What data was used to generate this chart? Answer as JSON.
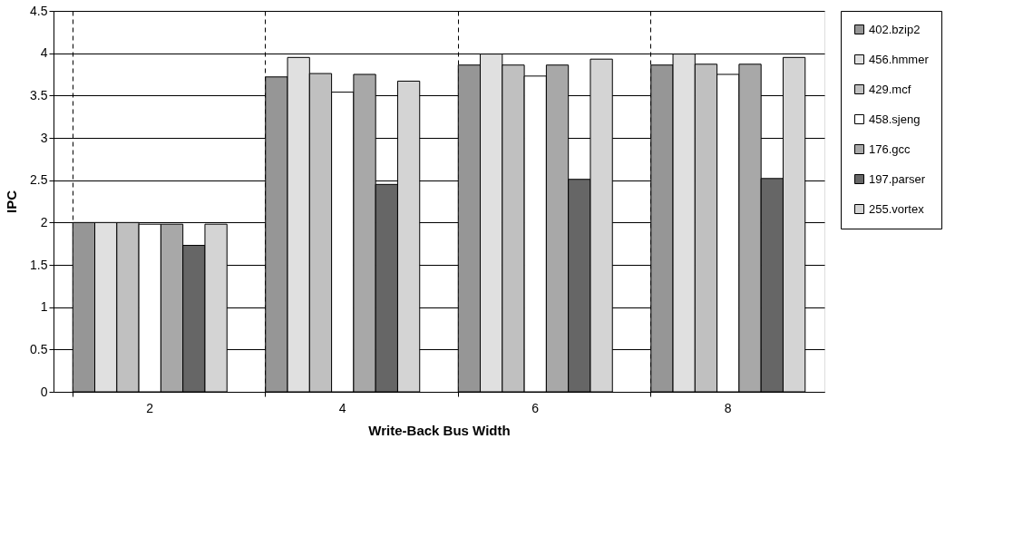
{
  "chart_data": {
    "type": "bar",
    "xlabel": "Write-Back Bus Width",
    "ylabel": "IPC",
    "categories": [
      "2",
      "4",
      "6",
      "8"
    ],
    "series": [
      {
        "name": "402.bzip2",
        "color": "#969696",
        "values": [
          2.0,
          3.72,
          3.86,
          3.86
        ]
      },
      {
        "name": "456.hmmer",
        "color": "#e0e0e0",
        "values": [
          2.0,
          3.95,
          3.99,
          3.99
        ]
      },
      {
        "name": "429.mcf",
        "color": "#c0c0c0",
        "values": [
          2.0,
          3.76,
          3.86,
          3.87
        ]
      },
      {
        "name": "458.sjeng",
        "color": "#ffffff",
        "values": [
          1.98,
          3.54,
          3.73,
          3.75
        ]
      },
      {
        "name": "176.gcc",
        "color": "#a8a8a8",
        "values": [
          1.98,
          3.75,
          3.86,
          3.87
        ]
      },
      {
        "name": "197.parser",
        "color": "#666666",
        "values": [
          1.73,
          2.45,
          2.51,
          2.52
        ]
      },
      {
        "name": "255.vortex",
        "color": "#d4d4d4",
        "values": [
          1.98,
          3.67,
          3.93,
          3.95
        ]
      }
    ],
    "ylim": [
      0,
      4.5
    ],
    "yticks": [
      0,
      0.5,
      1,
      1.5,
      2,
      2.5,
      3,
      3.5,
      4,
      4.5
    ],
    "grid": true,
    "legend": "right"
  }
}
